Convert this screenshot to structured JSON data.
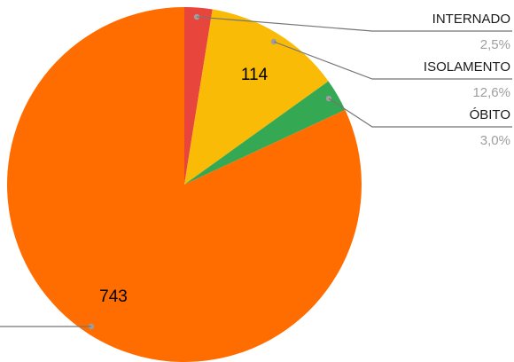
{
  "chart_data": {
    "type": "pie",
    "title": "",
    "slices": [
      {
        "label": "INTERNADO",
        "value": 23,
        "percent_text": "2,5%",
        "value_label": "",
        "color": "#e8453c"
      },
      {
        "label": "ISOLAMENTO",
        "value": 114,
        "percent_text": "12,6%",
        "value_label": "114",
        "color": "#f9bb05"
      },
      {
        "label": "ÓBITO",
        "value": 27,
        "percent_text": "3,0%",
        "value_label": "",
        "color": "#34a853"
      },
      {
        "label": "",
        "value": 743,
        "percent_text": "",
        "value_label": "743",
        "color": "#ff6d01"
      }
    ],
    "start_angle_deg": 0,
    "direction": "clockwise",
    "legend": "callouts-right"
  }
}
